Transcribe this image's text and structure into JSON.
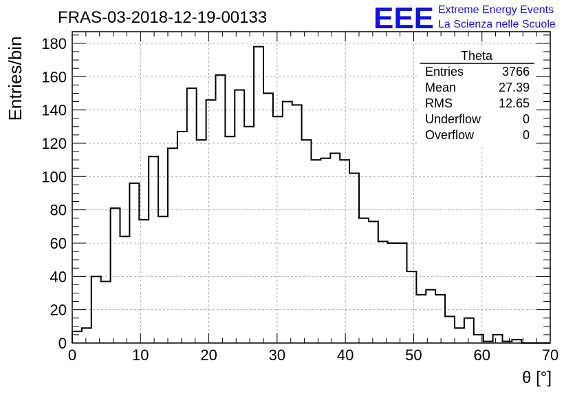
{
  "chart_data": {
    "type": "histogram",
    "title": "FRAS-03-2018-12-19-00133",
    "xlabel": "θ [°]",
    "ylabel": "Entries/bin",
    "xlim": [
      0,
      70
    ],
    "ylim": [
      0,
      187
    ],
    "bin_width": 1.4,
    "x_ticks": [
      0,
      10,
      20,
      30,
      40,
      50,
      60,
      70
    ],
    "y_ticks": [
      0,
      20,
      40,
      60,
      80,
      100,
      120,
      140,
      160,
      180
    ],
    "grid": true,
    "values": [
      7,
      9,
      40,
      37,
      81,
      64,
      96,
      74,
      112,
      76,
      117,
      127,
      153,
      122,
      146,
      161,
      124,
      152,
      130,
      178,
      150,
      136,
      145,
      143,
      122,
      110,
      111,
      114,
      110,
      102,
      75,
      73,
      61,
      60,
      60,
      43,
      29,
      32,
      29,
      16,
      9,
      15,
      5,
      1,
      5,
      1,
      2,
      0,
      0,
      0
    ],
    "stats_box": {
      "title": "Theta",
      "rows": [
        {
          "label": "Entries",
          "value": "3766"
        },
        {
          "label": "Mean",
          "value": "27.39"
        },
        {
          "label": "RMS",
          "value": "12.65"
        },
        {
          "label": "Underflow",
          "value": "0"
        },
        {
          "label": "Overflow",
          "value": "0"
        }
      ]
    }
  },
  "logo": {
    "text": "EEE",
    "line1": "Extreme Energy Events",
    "line2": "La Scienza nelle Scuole",
    "color": "#1010e0"
  }
}
